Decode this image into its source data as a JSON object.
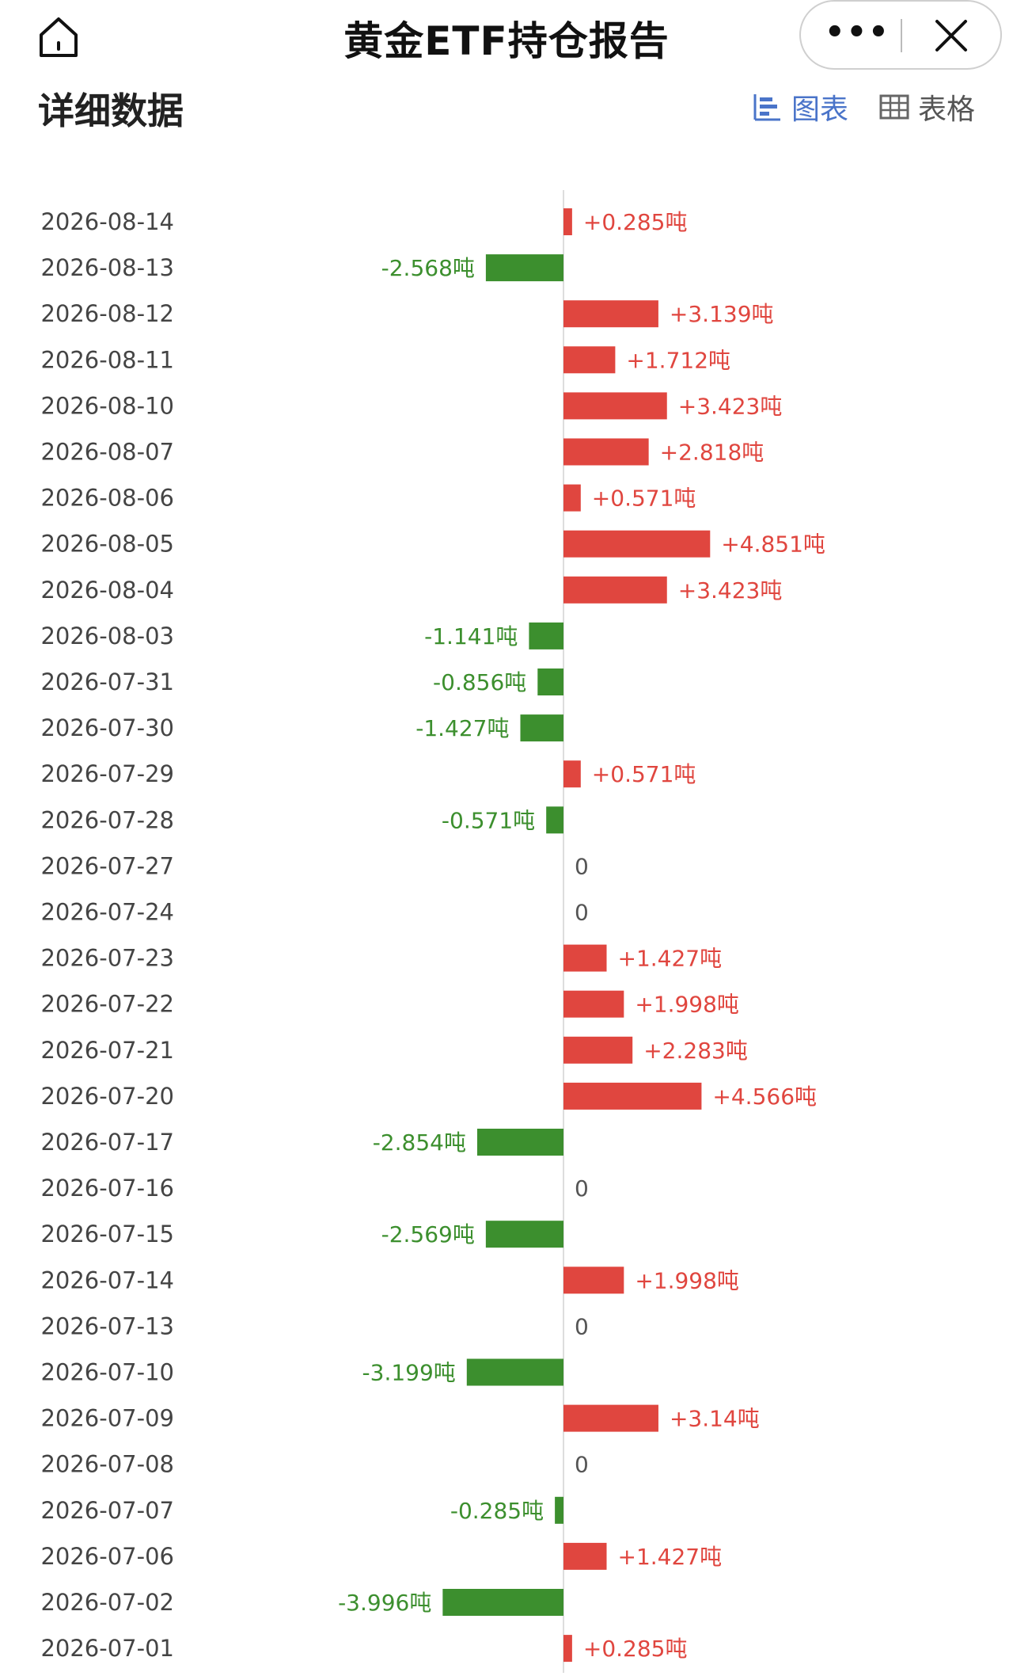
{
  "header": {
    "title": "黄金ETF持仓报告"
  },
  "section": {
    "title": "详细数据",
    "toggle_chart_label": "图表",
    "toggle_table_label": "表格"
  },
  "colors": {
    "positive": "#e0463f",
    "negative": "#3c8f2e",
    "axis": "#dddddd",
    "date_text": "#444444",
    "chart_active": "#4a74c9"
  },
  "icons": {
    "home": "home-icon",
    "more": "more-dots-icon",
    "close": "close-icon",
    "chart": "bar-chart-icon",
    "table": "table-grid-icon"
  },
  "chart_data": {
    "type": "bar",
    "orientation": "horizontal",
    "unit": "吨",
    "categories": [
      "2026-08-14",
      "2026-08-13",
      "2026-08-12",
      "2026-08-11",
      "2026-08-10",
      "2026-08-07",
      "2026-08-06",
      "2026-08-05",
      "2026-08-04",
      "2026-08-03",
      "2026-07-31",
      "2026-07-30",
      "2026-07-29",
      "2026-07-28",
      "2026-07-27",
      "2026-07-24",
      "2026-07-23",
      "2026-07-22",
      "2026-07-21",
      "2026-07-20",
      "2026-07-17",
      "2026-07-16",
      "2026-07-15",
      "2026-07-14",
      "2026-07-13",
      "2026-07-10",
      "2026-07-09",
      "2026-07-08",
      "2026-07-07",
      "2026-07-06",
      "2026-07-02",
      "2026-07-01"
    ],
    "values": [
      0.285,
      -2.568,
      3.139,
      1.712,
      3.423,
      2.818,
      0.571,
      4.851,
      3.423,
      -1.141,
      -0.856,
      -1.427,
      0.571,
      -0.571,
      0,
      0,
      1.427,
      1.998,
      2.283,
      4.566,
      -2.854,
      0,
      -2.569,
      1.998,
      0,
      -3.199,
      3.14,
      0,
      -0.285,
      1.427,
      -3.996,
      0.285
    ],
    "labels": [
      "+0.285吨",
      "-2.568吨",
      "+3.139吨",
      "+1.712吨",
      "+3.423吨",
      "+2.818吨",
      "+0.571吨",
      "+4.851吨",
      "+3.423吨",
      "-1.141吨",
      "-0.856吨",
      "-1.427吨",
      "+0.571吨",
      "-0.571吨",
      "0",
      "0",
      "+1.427吨",
      "+1.998吨",
      "+2.283吨",
      "+4.566吨",
      "-2.854吨",
      "0",
      "-2.569吨",
      "+1.998吨",
      "0",
      "-3.199吨",
      "+3.14吨",
      "0",
      "-0.285吨",
      "+1.427吨",
      "-3.996吨",
      "+0.285吨"
    ],
    "xlim": [
      -4,
      5
    ],
    "legend": "none",
    "grid": false
  }
}
